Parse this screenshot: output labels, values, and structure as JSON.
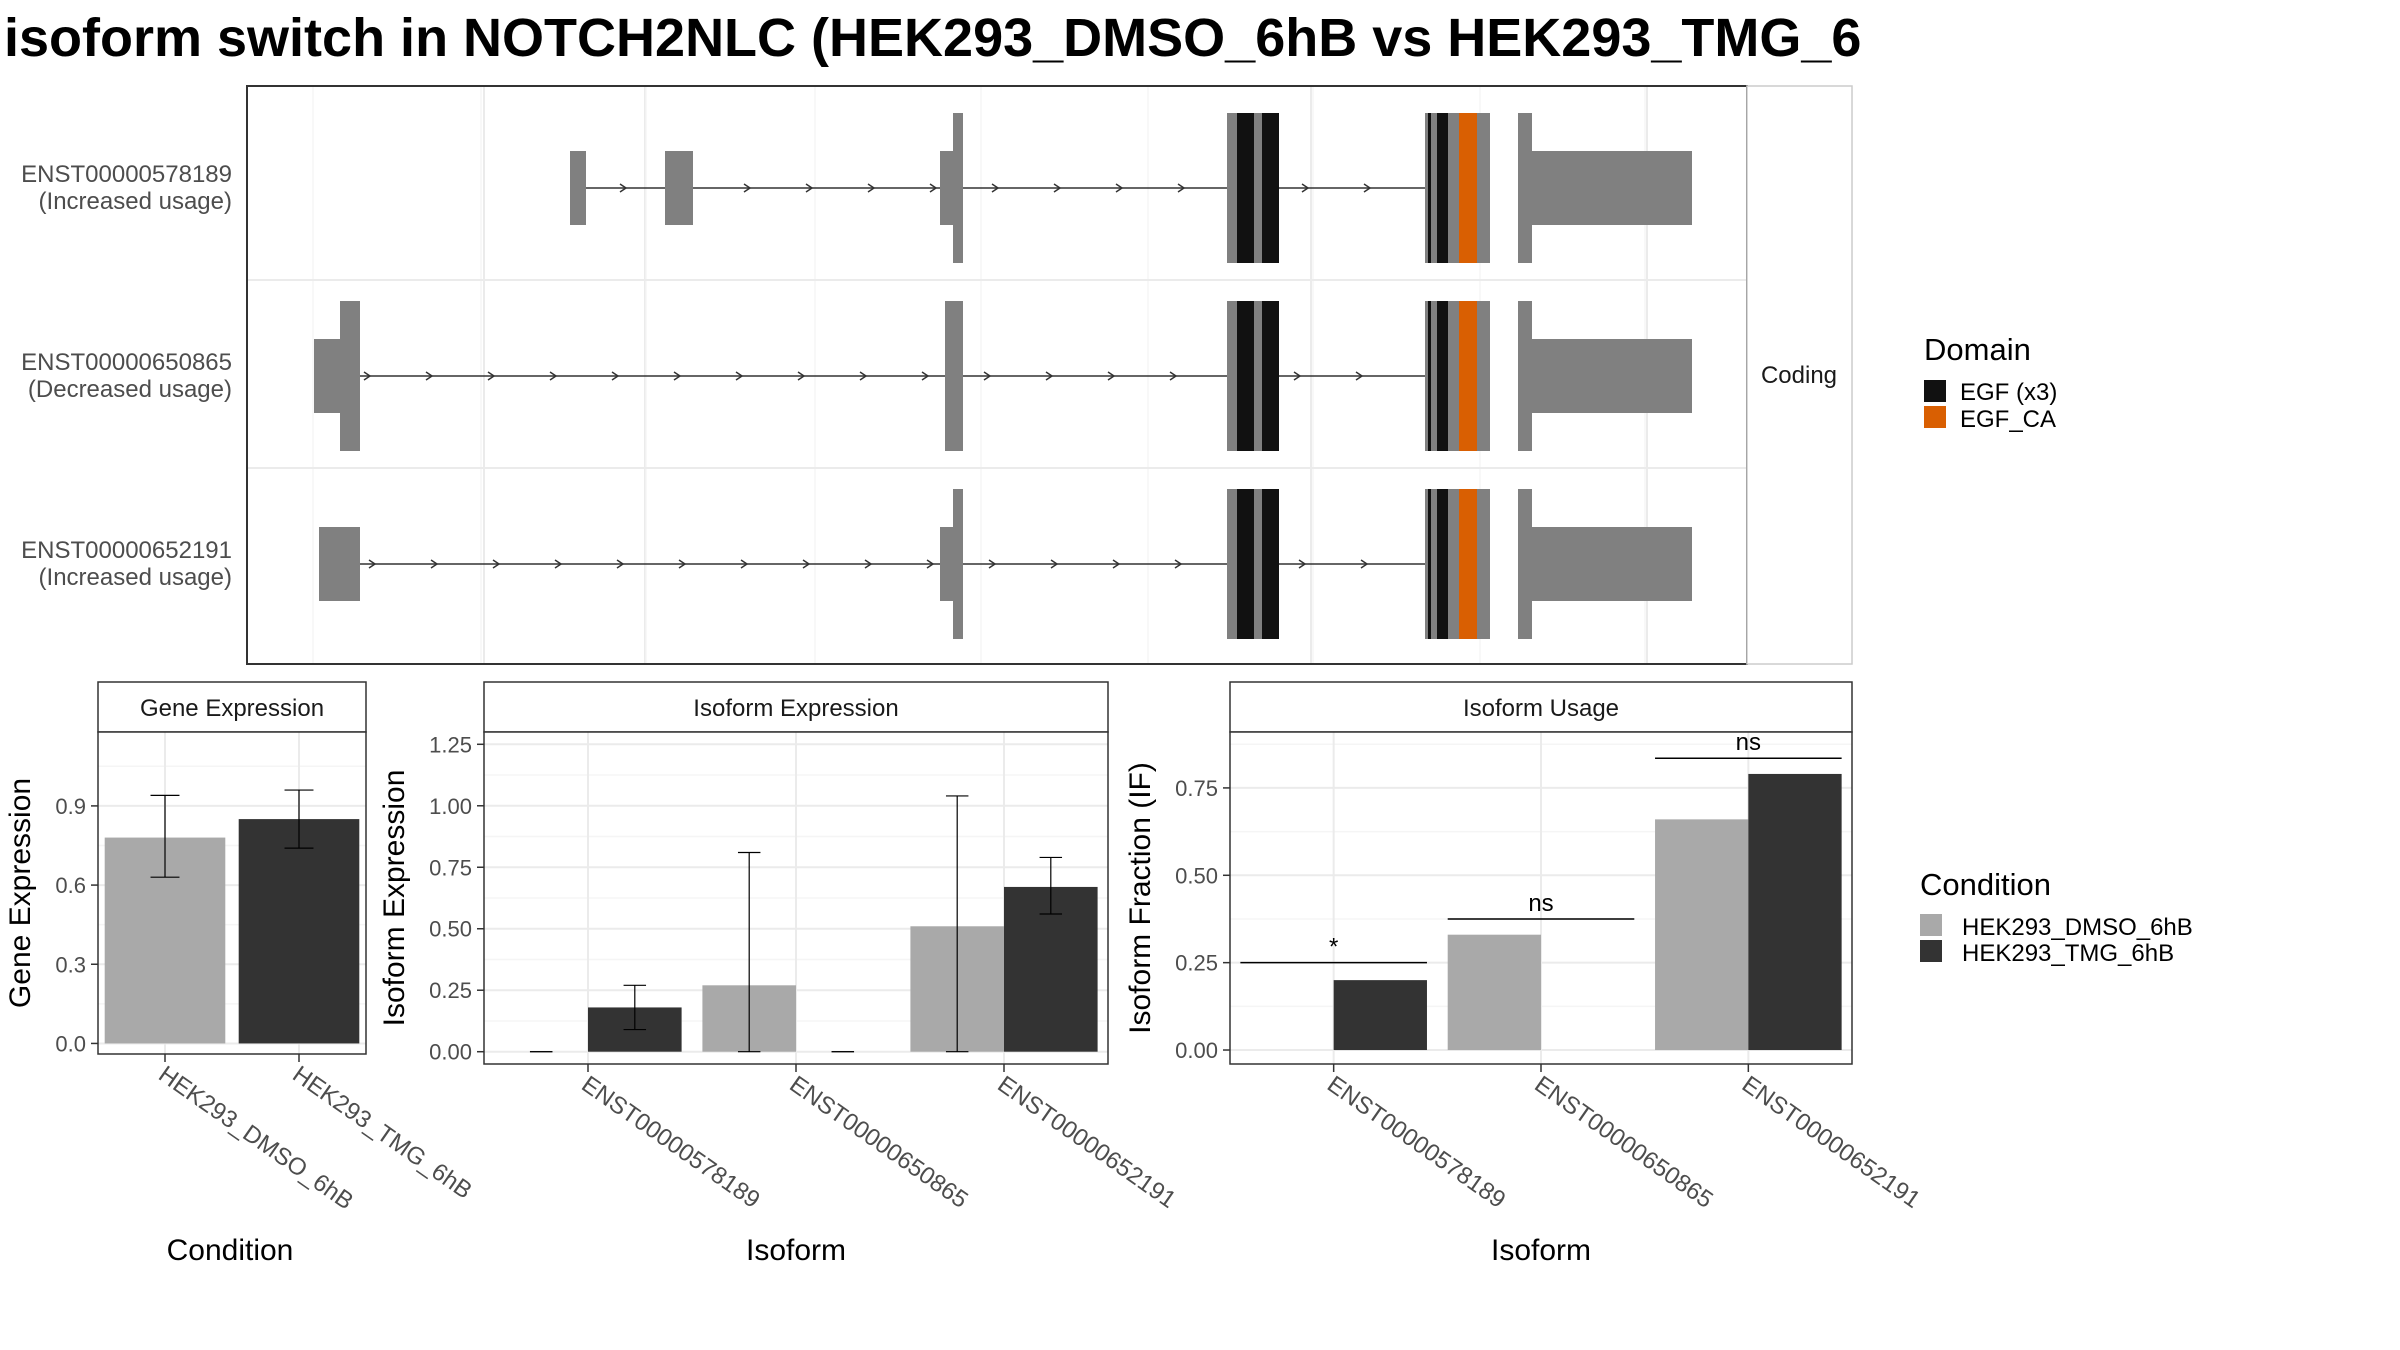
{
  "title": "isoform switch in NOTCH2NLC (HEK293_DMSO_6hB vs HEK293_TMG_6",
  "colors": {
    "exon": "#808080",
    "egf": "#111111",
    "egf_ca": "#d95f02",
    "dmso": "#a9a9a9",
    "tmg": "#333333",
    "grid": "#ebebeb",
    "strip_bg": "#ffffff",
    "panel_border": "#333333"
  },
  "structure": {
    "strip_label": "Coding",
    "domain_legend": {
      "title": "Domain",
      "entries": [
        {
          "label": "EGF (x3)",
          "color": "#111111"
        },
        {
          "label": "EGF_CA",
          "color": "#d95f02"
        }
      ]
    },
    "isoforms": [
      {
        "id": "ENST00000578189",
        "usage": "(Increased usage)"
      },
      {
        "id": "ENST00000650865",
        "usage": "(Decreased usage)"
      },
      {
        "id": "ENST00000652191",
        "usage": "(Increased usage)"
      }
    ]
  },
  "condition_legend": {
    "title": "Condition",
    "entries": [
      {
        "label": "HEK293_DMSO_6hB",
        "color": "#a9a9a9"
      },
      {
        "label": "HEK293_TMG_6hB",
        "color": "#333333"
      }
    ]
  },
  "chart_data": [
    {
      "type": "bar",
      "panel": "gene_expression",
      "strip": "Gene Expression",
      "xlabel": "Condition",
      "ylabel": "Gene Expression",
      "ylim": [
        -0.04,
        1.18
      ],
      "yticks": [
        0.0,
        0.3,
        0.6,
        0.9
      ],
      "ytick_labels": [
        "0.0",
        "0.3",
        "0.6",
        "0.9"
      ],
      "categories": [
        "HEK293_DMSO_6hB",
        "HEK293_TMG_6hB"
      ],
      "values": [
        0.78,
        0.85
      ],
      "err_low": [
        0.63,
        0.74
      ],
      "err_high": [
        0.94,
        0.96
      ],
      "grid": true
    },
    {
      "type": "bar",
      "panel": "isoform_expression",
      "strip": "Isoform Expression",
      "xlabel": "Isoform",
      "ylabel": "Isoform Expression",
      "ylim": [
        -0.05,
        1.3
      ],
      "yticks": [
        0.0,
        0.25,
        0.5,
        0.75,
        1.0,
        1.25
      ],
      "ytick_labels": [
        "0.00",
        "0.25",
        "0.50",
        "0.75",
        "1.00",
        "1.25"
      ],
      "categories": [
        "ENST00000578189",
        "ENST00000650865",
        "ENST00000652191"
      ],
      "series": [
        {
          "name": "HEK293_DMSO_6hB",
          "values": [
            0.0,
            0.27,
            0.51
          ],
          "err_low": [
            0.0,
            0.0,
            0.0
          ],
          "err_high": [
            0.0,
            0.81,
            1.04
          ]
        },
        {
          "name": "HEK293_TMG_6hB",
          "values": [
            0.18,
            0.0,
            0.67
          ],
          "err_low": [
            0.09,
            0.0,
            0.56
          ],
          "err_high": [
            0.27,
            0.0,
            0.79
          ]
        }
      ],
      "grid": true
    },
    {
      "type": "bar",
      "panel": "isoform_usage",
      "strip": "Isoform Usage",
      "xlabel": "Isoform",
      "ylabel": "Isoform Fraction (IF)",
      "ylim": [
        -0.04,
        0.91
      ],
      "yticks": [
        0.0,
        0.25,
        0.5,
        0.75
      ],
      "ytick_labels": [
        "0.00",
        "0.25",
        "0.50",
        "0.75"
      ],
      "categories": [
        "ENST00000578189",
        "ENST00000650865",
        "ENST00000652191"
      ],
      "series": [
        {
          "name": "HEK293_DMSO_6hB",
          "values": [
            0.0,
            0.33,
            0.66
          ]
        },
        {
          "name": "HEK293_TMG_6hB",
          "values": [
            0.2,
            0.0,
            0.79
          ]
        }
      ],
      "significance": [
        {
          "label": "*",
          "y": 0.25
        },
        {
          "label": "ns",
          "y": 0.375
        },
        {
          "label": "ns",
          "y": 0.835
        }
      ],
      "grid": true
    }
  ]
}
